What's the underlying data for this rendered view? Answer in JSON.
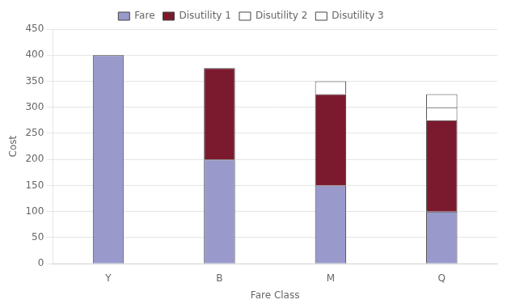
{
  "chart_data": {
    "type": "bar",
    "xlabel": "Fare Class",
    "ylabel": "Cost",
    "categories": [
      "Y",
      "B",
      "M",
      "Q"
    ],
    "series": [
      {
        "name": "Fare",
        "color": "#9999cc",
        "values": [
          400,
          200,
          150,
          100
        ]
      },
      {
        "name": "Disutility 1",
        "color": "#7b1a2e",
        "values": [
          0,
          175,
          175,
          175
        ]
      },
      {
        "name": "Disutility 2",
        "color": "#ffffff",
        "values": [
          0,
          0,
          25,
          25
        ]
      },
      {
        "name": "Disutility 3",
        "color": "#ffffff",
        "values": [
          0,
          0,
          0,
          25
        ]
      }
    ],
    "stacked": true,
    "ylim": [
      0,
      450
    ],
    "yticks": [
      0,
      50,
      100,
      150,
      200,
      250,
      300,
      350,
      400,
      450
    ],
    "grid": true,
    "legend": "top"
  }
}
